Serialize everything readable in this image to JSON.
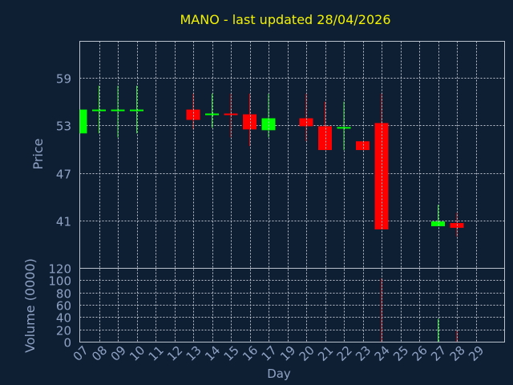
{
  "chart_data": {
    "type": "candlestick",
    "title": "MANO - last updated 28/04/2026",
    "xlabel": "Day",
    "x_ticks": [
      "07",
      "08",
      "09",
      "10",
      "11",
      "12",
      "13",
      "14",
      "15",
      "16",
      "17",
      "19",
      "20",
      "21",
      "22",
      "23",
      "24",
      "25",
      "26",
      "27",
      "28",
      "29"
    ],
    "price": {
      "ylabel": "Price",
      "yticks": [
        41,
        47,
        53,
        59
      ],
      "ylim": [
        35,
        63.6
      ],
      "candles": [
        {
          "day": "07",
          "open": 52.0,
          "high": 55.0,
          "low": 52.0,
          "close": 55.0
        },
        {
          "day": "08",
          "open": 55.0,
          "high": 58.0,
          "low": 52.0,
          "close": 55.0
        },
        {
          "day": "09",
          "open": 55.0,
          "high": 58.0,
          "low": 51.5,
          "close": 55.0
        },
        {
          "day": "10",
          "open": 55.0,
          "high": 58.0,
          "low": 52.0,
          "close": 55.0
        },
        {
          "day": "13",
          "open": 55.0,
          "high": 57.0,
          "low": 52.5,
          "close": 53.7
        },
        {
          "day": "14",
          "open": 54.3,
          "high": 57.0,
          "low": 52.7,
          "close": 54.5
        },
        {
          "day": "15",
          "open": 54.5,
          "high": 57.0,
          "low": 51.5,
          "close": 54.3
        },
        {
          "day": "16",
          "open": 54.4,
          "high": 57.0,
          "low": 50.4,
          "close": 52.5
        },
        {
          "day": "17",
          "open": 52.4,
          "high": 57.0,
          "low": 51.5,
          "close": 53.9
        },
        {
          "day": "20",
          "open": 53.9,
          "high": 57.0,
          "low": 51.0,
          "close": 52.9
        },
        {
          "day": "21",
          "open": 52.9,
          "high": 56.0,
          "low": 49.9,
          "close": 49.9
        },
        {
          "day": "22",
          "open": 52.8,
          "high": 56.0,
          "low": 49.9,
          "close": 52.8
        },
        {
          "day": "23",
          "open": 51.0,
          "high": 51.0,
          "low": 49.9,
          "close": 49.9
        },
        {
          "day": "24",
          "open": 53.3,
          "high": 57.0,
          "low": 39.9,
          "close": 39.9
        },
        {
          "day": "27",
          "open": 40.3,
          "high": 43.0,
          "low": 40.3,
          "close": 40.9
        },
        {
          "day": "28",
          "open": 40.7,
          "high": 42.0,
          "low": 39.0,
          "close": 40.1
        }
      ]
    },
    "volume": {
      "ylabel": "Volume (0000)",
      "yticks": [
        0,
        20,
        40,
        60,
        80,
        100,
        120
      ],
      "ylim": [
        0,
        120
      ],
      "bars": [
        {
          "day": "24",
          "value": 103,
          "direction": "down"
        },
        {
          "day": "27",
          "value": 37,
          "direction": "up"
        },
        {
          "day": "28",
          "value": 18,
          "direction": "down"
        }
      ]
    },
    "colors": {
      "background": "#0f1f33",
      "up": "#00ff00",
      "down": "#ff0000",
      "up_wick": "#33dd33",
      "down_wick": "#dd1111",
      "grid": "#b8c1cc",
      "title": "#f2f200",
      "axis_text": "#8ea2c4"
    },
    "grid": true,
    "legend": "none"
  }
}
